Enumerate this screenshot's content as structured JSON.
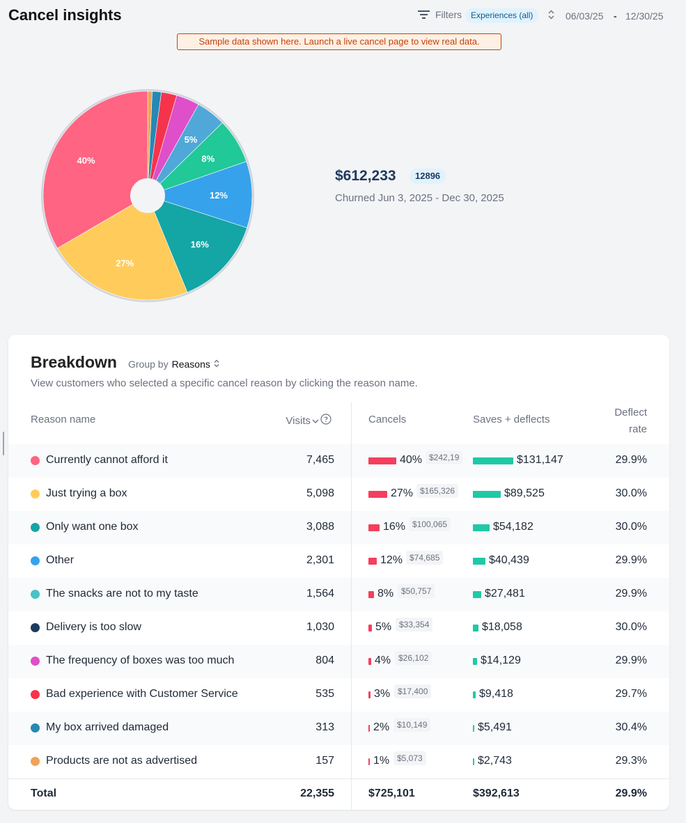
{
  "page": {
    "title": "Cancel insights"
  },
  "toolbar": {
    "filters_label": "Filters",
    "experience_badge": "Experiences (all)",
    "date_start": "06/03/25",
    "date_separator": "-",
    "date_end": "12/30/25"
  },
  "banner": {
    "text": "Sample data shown here. Launch a live cancel page to view real data."
  },
  "summary": {
    "amount": "$612,233",
    "count": "12896",
    "caption": "Churned Jun 3, 2025 - Dec 30, 2025"
  },
  "chart_data": {
    "type": "pie",
    "labels": [
      "Currently cannot afford it",
      "Just trying a box",
      "Only want one box",
      "Other",
      "The snacks are not to my taste",
      "Delivery is too slow",
      "The frequency of boxes was too much",
      "Bad experience with Customer Service",
      "My box arrived damaged",
      "Products are not as advertised"
    ],
    "values": [
      7465,
      5098,
      3088,
      2301,
      1564,
      1030,
      804,
      535,
      313,
      157
    ],
    "slice_labels": [
      "40%",
      "27%",
      "16%",
      "12%",
      "8%",
      "5%",
      "",
      "",
      "",
      ""
    ],
    "colors": [
      "#ff6482",
      "#ffcc5c",
      "#14a5a5",
      "#36a2eb",
      "#20c997",
      "#4fa8d8",
      "#de4fc9",
      "#f6334d",
      "#2589b4",
      "#f1a158"
    ],
    "start": "top, clockwise from the smallest slice"
  },
  "breakdown": {
    "title": "Breakdown",
    "group_by_label": "Group by",
    "group_by_value": "Reasons",
    "description": "View customers who selected a specific cancel reason by clicking the reason name.",
    "columns": {
      "reason": "Reason name",
      "visits": "Visits",
      "cancels": "Cancels",
      "saves": "Saves + deflects",
      "deflect_line1": "Deflect",
      "deflect_line2": "rate"
    },
    "rows": [
      {
        "reason": "Currently cannot afford it",
        "color": "#ff6482",
        "visits": "7,465",
        "cancel_pct": "40%",
        "cancel_share": 0.4,
        "cancel_amount": "$242,19",
        "saves": "$131,147",
        "saves_share": 0.333,
        "deflect_rate": "29.9%"
      },
      {
        "reason": "Just trying a box",
        "color": "#ffcc5c",
        "visits": "5,098",
        "cancel_pct": "27%",
        "cancel_share": 0.27,
        "cancel_amount": "$165,326",
        "saves": "$89,525",
        "saves_share": 0.228,
        "deflect_rate": "30.0%"
      },
      {
        "reason": "Only want one box",
        "color": "#14a5a5",
        "visits": "3,088",
        "cancel_pct": "16%",
        "cancel_share": 0.16,
        "cancel_amount": "$100,065",
        "saves": "$54,182",
        "saves_share": 0.138,
        "deflect_rate": "30.0%"
      },
      {
        "reason": "Other",
        "color": "#36a2eb",
        "visits": "2,301",
        "cancel_pct": "12%",
        "cancel_share": 0.12,
        "cancel_amount": "$74,685",
        "saves": "$40,439",
        "saves_share": 0.103,
        "deflect_rate": "29.9%"
      },
      {
        "reason": "The snacks are not to my taste",
        "color": "#48c2c5",
        "visits": "1,564",
        "cancel_pct": "8%",
        "cancel_share": 0.08,
        "cancel_amount": "$50,757",
        "saves": "$27,481",
        "saves_share": 0.07,
        "deflect_rate": "29.9%"
      },
      {
        "reason": "Delivery is too slow",
        "color": "#1e3a5f",
        "visits": "1,030",
        "cancel_pct": "5%",
        "cancel_share": 0.05,
        "cancel_amount": "$33,354",
        "saves": "$18,058",
        "saves_share": 0.046,
        "deflect_rate": "30.0%"
      },
      {
        "reason": "The frequency of boxes was too much",
        "color": "#de4fc9",
        "visits": "804",
        "cancel_pct": "4%",
        "cancel_share": 0.04,
        "cancel_amount": "$26,102",
        "saves": "$14,129",
        "saves_share": 0.036,
        "deflect_rate": "29.9%"
      },
      {
        "reason": "Bad experience with Customer Service",
        "color": "#f6334d",
        "visits": "535",
        "cancel_pct": "3%",
        "cancel_share": 0.03,
        "cancel_amount": "$17,400",
        "saves": "$9,418",
        "saves_share": 0.024,
        "deflect_rate": "29.7%"
      },
      {
        "reason": "My box arrived damaged",
        "color": "#2589b4",
        "visits": "313",
        "cancel_pct": "2%",
        "cancel_share": 0.02,
        "cancel_amount": "$10,149",
        "saves": "$5,491",
        "saves_share": 0.014,
        "deflect_rate": "30.4%"
      },
      {
        "reason": "Products are not as advertised",
        "color": "#f1a158",
        "visits": "157",
        "cancel_pct": "1%",
        "cancel_share": 0.01,
        "cancel_amount": "$5,073",
        "saves": "$2,743",
        "saves_share": 0.007,
        "deflect_rate": "29.3%"
      }
    ],
    "total": {
      "label": "Total",
      "visits": "22,355",
      "cancels": "$725,101",
      "saves": "$392,613",
      "deflect_rate": "29.9%"
    }
  }
}
